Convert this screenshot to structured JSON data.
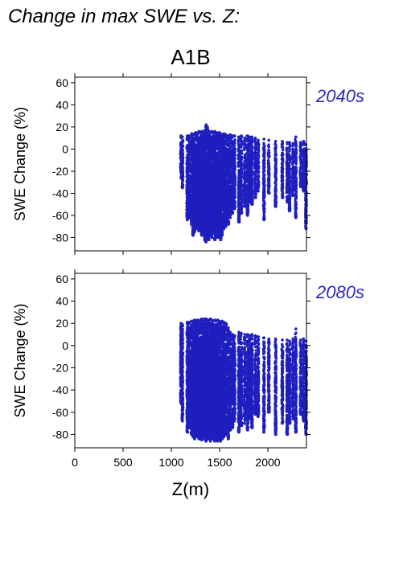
{
  "page_title": "Change in max SWE vs. Z:",
  "scenario": "A1B",
  "colors": {
    "points": "#1f1fbf",
    "period_label": "#2b2bb8",
    "axis": "#000000"
  },
  "chart_data": [
    {
      "type": "scatter",
      "period": "2040s",
      "ylabel": "SWE Change (%)",
      "xlabel": "",
      "xlim": [
        0,
        2400
      ],
      "ylim": [
        -92,
        65
      ],
      "xticks": [
        0,
        500,
        1000,
        1500,
        2000
      ],
      "yticks": [
        -80,
        -60,
        -40,
        -20,
        0,
        20,
        40,
        60
      ],
      "show_x_tick_labels": false,
      "grid": false,
      "elevation_columns": [
        {
          "z": 1100,
          "min": -26,
          "max": 12
        },
        {
          "z": 1115,
          "min": -35,
          "max": 11
        },
        {
          "z": 1165,
          "min": -64,
          "max": 12
        },
        {
          "z": 1185,
          "min": -62,
          "max": 12
        },
        {
          "z": 1210,
          "min": -68,
          "max": 14
        },
        {
          "z": 1225,
          "min": -78,
          "max": 13
        },
        {
          "z": 1240,
          "min": -75,
          "max": 14
        },
        {
          "z": 1255,
          "min": -72,
          "max": 15
        },
        {
          "z": 1270,
          "min": -70,
          "max": 14
        },
        {
          "z": 1285,
          "min": -74,
          "max": 16
        },
        {
          "z": 1300,
          "min": -72,
          "max": 15
        },
        {
          "z": 1315,
          "min": -78,
          "max": 16
        },
        {
          "z": 1330,
          "min": -76,
          "max": 15
        },
        {
          "z": 1345,
          "min": -82,
          "max": 17
        },
        {
          "z": 1360,
          "min": -84,
          "max": 22
        },
        {
          "z": 1375,
          "min": -80,
          "max": 20
        },
        {
          "z": 1390,
          "min": -82,
          "max": 16
        },
        {
          "z": 1405,
          "min": -78,
          "max": 15
        },
        {
          "z": 1420,
          "min": -80,
          "max": 16
        },
        {
          "z": 1435,
          "min": -76,
          "max": 15
        },
        {
          "z": 1450,
          "min": -82,
          "max": 16
        },
        {
          "z": 1465,
          "min": -78,
          "max": 15
        },
        {
          "z": 1480,
          "min": -80,
          "max": 14
        },
        {
          "z": 1495,
          "min": -74,
          "max": 15
        },
        {
          "z": 1510,
          "min": -82,
          "max": 14
        },
        {
          "z": 1525,
          "min": -78,
          "max": 13
        },
        {
          "z": 1545,
          "min": -72,
          "max": 14
        },
        {
          "z": 1565,
          "min": -70,
          "max": 13
        },
        {
          "z": 1590,
          "min": -68,
          "max": 12
        },
        {
          "z": 1610,
          "min": -62,
          "max": 13
        },
        {
          "z": 1635,
          "min": -58,
          "max": 12
        },
        {
          "z": 1655,
          "min": -54,
          "max": 12
        },
        {
          "z": 1700,
          "min": -66,
          "max": 11
        },
        {
          "z": 1725,
          "min": -58,
          "max": 12
        },
        {
          "z": 1760,
          "min": -52,
          "max": 10
        },
        {
          "z": 1790,
          "min": -60,
          "max": 12
        },
        {
          "z": 1810,
          "min": -48,
          "max": 11
        },
        {
          "z": 1835,
          "min": -50,
          "max": 11
        },
        {
          "z": 1870,
          "min": -44,
          "max": 10
        },
        {
          "z": 1900,
          "min": -38,
          "max": 8
        },
        {
          "z": 1960,
          "min": -64,
          "max": 9
        },
        {
          "z": 2010,
          "min": -40,
          "max": 8
        },
        {
          "z": 2080,
          "min": -52,
          "max": 7
        },
        {
          "z": 2150,
          "min": -44,
          "max": 7
        },
        {
          "z": 2200,
          "min": -48,
          "max": 6
        },
        {
          "z": 2225,
          "min": -56,
          "max": 6
        },
        {
          "z": 2260,
          "min": -42,
          "max": 5
        },
        {
          "z": 2290,
          "min": -62,
          "max": 11
        },
        {
          "z": 2340,
          "min": -34,
          "max": 6
        },
        {
          "z": 2370,
          "min": -38,
          "max": 7
        },
        {
          "z": 2395,
          "min": -72,
          "max": 4
        }
      ]
    },
    {
      "type": "scatter",
      "period": "2080s",
      "ylabel": "SWE Change (%)",
      "xlabel": "Z(m)",
      "xlim": [
        0,
        2400
      ],
      "ylim": [
        -92,
        65
      ],
      "xticks": [
        0,
        500,
        1000,
        1500,
        2000
      ],
      "yticks": [
        -80,
        -60,
        -40,
        -20,
        0,
        20,
        40,
        60
      ],
      "show_x_tick_labels": true,
      "grid": false,
      "elevation_columns": [
        {
          "z": 1100,
          "min": -52,
          "max": 20
        },
        {
          "z": 1115,
          "min": -68,
          "max": 19
        },
        {
          "z": 1165,
          "min": -78,
          "max": 21
        },
        {
          "z": 1185,
          "min": -74,
          "max": 21
        },
        {
          "z": 1210,
          "min": -80,
          "max": 22
        },
        {
          "z": 1225,
          "min": -82,
          "max": 22
        },
        {
          "z": 1240,
          "min": -84,
          "max": 23
        },
        {
          "z": 1255,
          "min": -82,
          "max": 22
        },
        {
          "z": 1270,
          "min": -80,
          "max": 23
        },
        {
          "z": 1285,
          "min": -84,
          "max": 22
        },
        {
          "z": 1300,
          "min": -82,
          "max": 23
        },
        {
          "z": 1315,
          "min": -85,
          "max": 24
        },
        {
          "z": 1330,
          "min": -82,
          "max": 23
        },
        {
          "z": 1345,
          "min": -84,
          "max": 24
        },
        {
          "z": 1360,
          "min": -86,
          "max": 24
        },
        {
          "z": 1375,
          "min": -84,
          "max": 23
        },
        {
          "z": 1390,
          "min": -82,
          "max": 23
        },
        {
          "z": 1405,
          "min": -86,
          "max": 24
        },
        {
          "z": 1420,
          "min": -84,
          "max": 23
        },
        {
          "z": 1435,
          "min": -82,
          "max": 22
        },
        {
          "z": 1450,
          "min": -86,
          "max": 23
        },
        {
          "z": 1465,
          "min": -84,
          "max": 22
        },
        {
          "z": 1480,
          "min": -86,
          "max": 23
        },
        {
          "z": 1495,
          "min": -84,
          "max": 22
        },
        {
          "z": 1510,
          "min": -86,
          "max": 21
        },
        {
          "z": 1525,
          "min": -84,
          "max": 22
        },
        {
          "z": 1545,
          "min": -82,
          "max": 21
        },
        {
          "z": 1565,
          "min": -80,
          "max": 20
        },
        {
          "z": 1590,
          "min": -84,
          "max": 16
        },
        {
          "z": 1610,
          "min": -76,
          "max": 12
        },
        {
          "z": 1635,
          "min": -74,
          "max": 10
        },
        {
          "z": 1655,
          "min": -68,
          "max": 9
        },
        {
          "z": 1700,
          "min": -78,
          "max": 12
        },
        {
          "z": 1725,
          "min": -72,
          "max": 11
        },
        {
          "z": 1760,
          "min": -70,
          "max": 10
        },
        {
          "z": 1790,
          "min": -76,
          "max": 10
        },
        {
          "z": 1810,
          "min": -66,
          "max": 9
        },
        {
          "z": 1835,
          "min": -74,
          "max": 10
        },
        {
          "z": 1870,
          "min": -62,
          "max": 9
        },
        {
          "z": 1900,
          "min": -64,
          "max": 8
        },
        {
          "z": 1960,
          "min": -78,
          "max": 7
        },
        {
          "z": 2010,
          "min": -60,
          "max": 6
        },
        {
          "z": 2080,
          "min": -80,
          "max": 6
        },
        {
          "z": 2150,
          "min": -70,
          "max": 5
        },
        {
          "z": 2200,
          "min": -80,
          "max": 5
        },
        {
          "z": 2225,
          "min": -70,
          "max": 4
        },
        {
          "z": 2260,
          "min": -66,
          "max": 6
        },
        {
          "z": 2290,
          "min": -78,
          "max": 15
        },
        {
          "z": 2340,
          "min": -62,
          "max": 5
        },
        {
          "z": 2370,
          "min": -68,
          "max": 6
        },
        {
          "z": 2395,
          "min": -80,
          "max": 4
        }
      ]
    }
  ]
}
